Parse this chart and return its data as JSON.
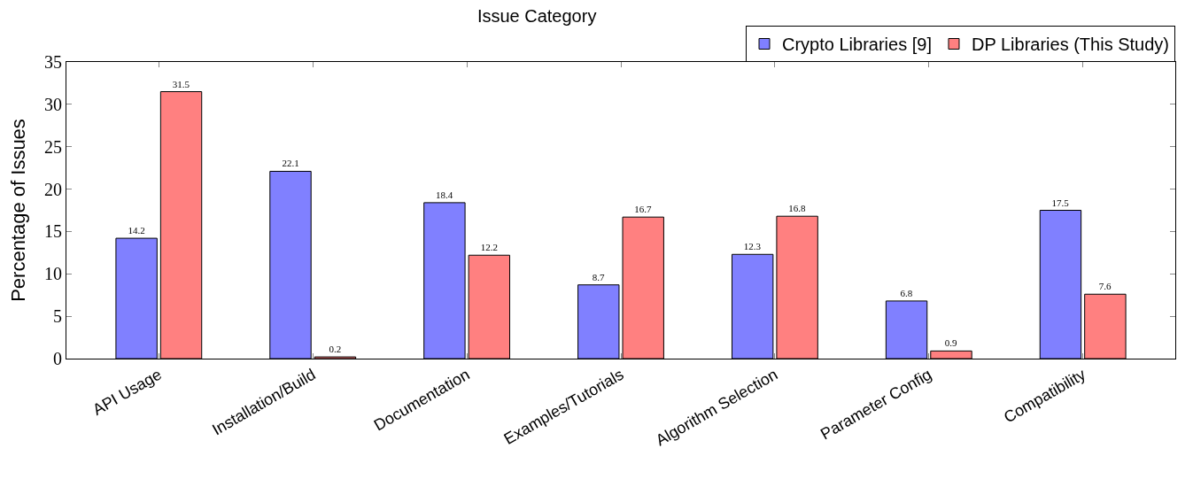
{
  "chart_data": {
    "type": "bar",
    "title": "Issue Category",
    "ylabel": "Percentage of Issues",
    "categories": [
      "API Usage",
      "Installation/Build",
      "Documentation",
      "Examples/Tutorials",
      "Algorithm Selection",
      "Parameter Config",
      "Compatibility"
    ],
    "series": [
      {
        "name": "Crypto Libraries [9]",
        "color": "#8080ff",
        "values": [
          14.2,
          22.1,
          18.4,
          8.7,
          12.3,
          6.8,
          17.5
        ]
      },
      {
        "name": "DP Libraries (This Study)",
        "color": "#ff8080",
        "values": [
          31.5,
          0.2,
          12.2,
          16.7,
          16.8,
          0.9,
          7.6
        ]
      }
    ],
    "ylim": [
      0,
      35
    ],
    "yticks": [
      0,
      5,
      10,
      15,
      20,
      25,
      30,
      35
    ],
    "data_labels": true,
    "legend": "top right"
  }
}
